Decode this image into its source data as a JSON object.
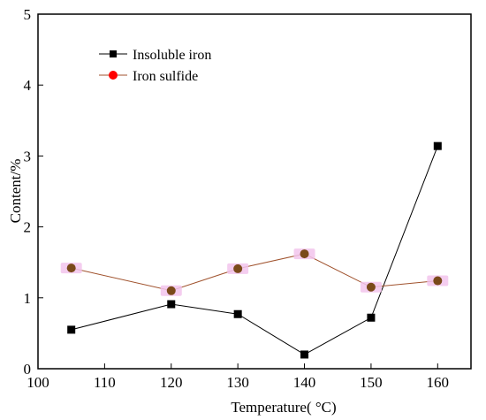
{
  "chart_data": {
    "type": "line",
    "xlabel": "Temperature(  °C)",
    "ylabel": "Content/%",
    "xlim": [
      100,
      165
    ],
    "ylim": [
      0,
      5
    ],
    "xticks": [
      "100",
      "110",
      "120",
      "130",
      "140",
      "150",
      "160"
    ],
    "yticks": [
      "0",
      "1",
      "2",
      "3",
      "4",
      "5"
    ],
    "legend_position": "top-left",
    "series": [
      {
        "name": "Insoluble iron",
        "color": "#000000",
        "marker": "square",
        "x": [
          105,
          120,
          130,
          140,
          150,
          160
        ],
        "y": [
          0.55,
          0.91,
          0.77,
          0.2,
          0.72,
          3.14
        ]
      },
      {
        "name": "Iron sulfide",
        "color": "#a0522d",
        "marker": "circle",
        "marker_fill": "#7a4a1a",
        "marker_halo": "#f2c4ec",
        "x": [
          105,
          120,
          130,
          140,
          150,
          160
        ],
        "y": [
          1.42,
          1.1,
          1.41,
          1.62,
          1.15,
          1.24
        ]
      }
    ]
  }
}
